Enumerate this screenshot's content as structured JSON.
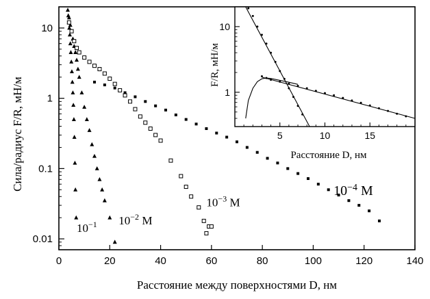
{
  "chart_data": [
    {
      "type": "scatter",
      "title": "",
      "xlabel": "Расстояние между поверхностями D, нм",
      "ylabel": "Сила/радиус F/R, мН/м",
      "x_ticks": [
        "0",
        "20",
        "40",
        "60",
        "80",
        "100",
        "120",
        "140"
      ],
      "y_ticks": [
        "0.01",
        "0.1",
        "1",
        "10"
      ],
      "xlim": [
        0,
        140
      ],
      "ylim": [
        0.007,
        20
      ],
      "y_scale": "log",
      "grid": false,
      "legend": "none",
      "series": [
        {
          "name": "10⁻¹",
          "label_base": "10",
          "label_exp": "−1",
          "label_unit": "",
          "marker": "triangle",
          "x": [
            3.5,
            3.7,
            3.9,
            4.1,
            4.3,
            4.5,
            4.7,
            4.9,
            5.1,
            5.3,
            5.5,
            5.7,
            5.9,
            6.1,
            6.3,
            6.5,
            6.8
          ],
          "y": [
            18,
            15,
            12,
            10,
            8,
            6,
            4.5,
            3.3,
            2.4,
            1.7,
            1.2,
            0.8,
            0.5,
            0.28,
            0.12,
            0.05,
            0.02
          ]
        },
        {
          "name": "10⁻² М",
          "label_base": "10",
          "label_exp": "−2",
          "label_unit": " М",
          "marker": "triangle",
          "x": [
            4,
            4.5,
            5,
            5.5,
            6,
            6.5,
            7,
            7.5,
            8,
            9,
            10,
            11,
            12,
            13,
            14,
            15,
            16,
            17,
            18,
            20,
            22
          ],
          "y": [
            14,
            11,
            9,
            7,
            5.5,
            4.5,
            3.5,
            2.6,
            2,
            1.2,
            0.75,
            0.5,
            0.35,
            0.22,
            0.15,
            0.1,
            0.07,
            0.05,
            0.035,
            0.02,
            0.009
          ]
        },
        {
          "name": "10⁻³ М",
          "label_base": "10",
          "label_exp": "−3",
          "label_unit": " М",
          "marker": "open-square",
          "x": [
            4,
            5,
            6,
            7,
            8,
            10,
            12,
            14,
            16,
            18,
            20,
            22,
            24,
            26,
            28,
            30,
            32,
            34,
            36,
            38,
            40,
            44,
            48,
            50,
            52,
            55,
            57,
            58,
            59,
            60
          ],
          "y": [
            12,
            9,
            6.5,
            5.2,
            4.5,
            3.8,
            3.3,
            2.9,
            2.6,
            2.25,
            1.9,
            1.6,
            1.3,
            1.1,
            0.9,
            0.7,
            0.55,
            0.45,
            0.37,
            0.3,
            0.25,
            0.13,
            0.078,
            0.055,
            0.04,
            0.028,
            0.018,
            0.012,
            0.015,
            0.015
          ]
        },
        {
          "name": "10⁻⁴ М",
          "label_base": "10",
          "label_exp": "−4",
          "label_unit": " М",
          "marker": "filled-square",
          "x": [
            14,
            18,
            22,
            26,
            30,
            34,
            38,
            42,
            46,
            50,
            54,
            58,
            62,
            66,
            70,
            74,
            78,
            82,
            86,
            90,
            94,
            98,
            102,
            106,
            110,
            114,
            118,
            122,
            126
          ],
          "y": [
            1.7,
            1.55,
            1.4,
            1.2,
            1.05,
            0.9,
            0.78,
            0.68,
            0.58,
            0.5,
            0.43,
            0.37,
            0.32,
            0.28,
            0.24,
            0.2,
            0.17,
            0.14,
            0.12,
            0.1,
            0.085,
            0.072,
            0.06,
            0.05,
            0.042,
            0.035,
            0.03,
            0.025,
            0.018
          ]
        }
      ]
    },
    {
      "type": "scatter",
      "title": "",
      "xlabel": "Расстояние D, нм",
      "ylabel": "F/R, мН/м",
      "x_ticks": [
        "5",
        "10",
        "15"
      ],
      "y_ticks": [
        "1",
        "10"
      ],
      "xlim": [
        0,
        20
      ],
      "ylim": [
        0.3,
        20
      ],
      "y_scale": "log",
      "grid": false,
      "legend": "none",
      "series": [
        {
          "marker": "dot",
          "x": [
            1.5,
            2,
            2.5,
            3,
            3.5,
            4,
            4.5,
            5,
            5.5,
            6,
            6.5,
            7,
            7.5
          ],
          "y": [
            19,
            14.5,
            10,
            7.5,
            5.5,
            4,
            2.9,
            2.1,
            1.6,
            1.15,
            0.85,
            0.62,
            0.46
          ]
        },
        {
          "marker": "dot",
          "x": [
            3,
            3.5,
            4,
            5,
            6,
            7,
            8,
            9,
            10,
            11,
            12,
            13,
            14,
            15,
            16,
            17,
            18,
            19
          ],
          "y": [
            1.75,
            1.65,
            1.55,
            1.45,
            1.35,
            1.25,
            1.15,
            1.05,
            0.97,
            0.9,
            0.82,
            0.75,
            0.69,
            0.63,
            0.57,
            0.52,
            0.47,
            0.43
          ]
        }
      ],
      "fit_lines": [
        {
          "x": [
            1.2,
            8.3
          ],
          "y": [
            22,
            0.3
          ]
        },
        {
          "x": [
            3,
            20
          ],
          "y": [
            1.7,
            0.4
          ]
        }
      ],
      "fit_curve": {
        "x": [
          1.2,
          1.5,
          2,
          2.5,
          3,
          3.5,
          4,
          5,
          6,
          7
        ],
        "y": [
          0.4,
          0.75,
          1.15,
          1.45,
          1.6,
          1.65,
          1.62,
          1.52,
          1.42,
          1.32
        ]
      }
    }
  ]
}
